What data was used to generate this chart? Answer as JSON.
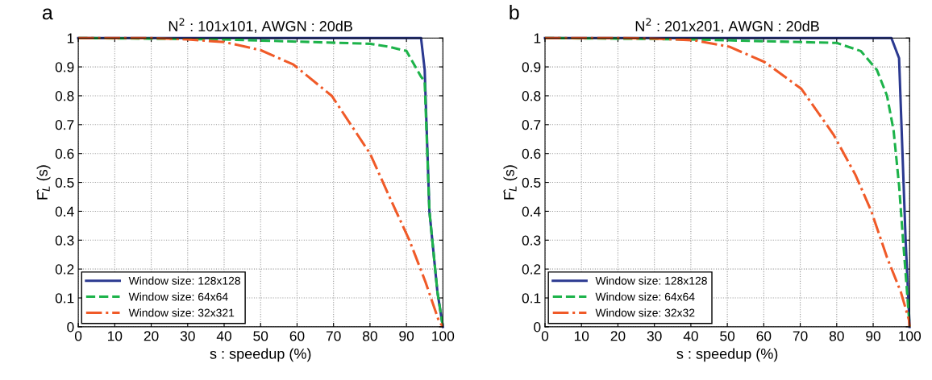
{
  "chart_data": [
    {
      "type": "line",
      "title": "N$^{2}$ : 101x101, AWGN : 20dB",
      "xlabel": "s : speedup (%)",
      "ylabel": "F̂$_{L}$ (s)",
      "annotations": [
        "a"
      ],
      "xlim": [
        0,
        100
      ],
      "ylim": [
        0,
        1
      ],
      "xticks": [
        0,
        10,
        20,
        30,
        40,
        50,
        60,
        70,
        80,
        90,
        100
      ],
      "yticks": [
        0,
        0.1,
        0.2,
        0.3,
        0.4,
        0.5,
        0.6,
        0.7,
        0.8,
        0.9,
        1
      ],
      "grid": true,
      "legend": "bottom left",
      "series": [
        {
          "name": "Window size: 128x128",
          "color": "#2b3990",
          "line_style": "solid",
          "x": [
            0,
            94,
            95,
            96.3,
            98.5,
            100
          ],
          "values": [
            1,
            1,
            0.89,
            0.4,
            0.12,
            0
          ]
        },
        {
          "name": "Window size: 64x64",
          "color": "#1db34a",
          "line_style": "dashed",
          "x": [
            0,
            40,
            80,
            85,
            90,
            94,
            95,
            96.3,
            98.5,
            100
          ],
          "values": [
            1,
            0.995,
            0.98,
            0.97,
            0.955,
            0.866,
            0.85,
            0.4,
            0.12,
            0
          ]
        },
        {
          "name": "Window size: 32x321",
          "color": "#f05a28",
          "line_style": "dashdot",
          "x": [
            0,
            20,
            30,
            40,
            50,
            59,
            69.5,
            80,
            85.7,
            90.8,
            95.2,
            98.9,
            100
          ],
          "values": [
            1,
            1,
            0.995,
            0.986,
            0.958,
            0.908,
            0.8,
            0.6,
            0.44,
            0.3,
            0.156,
            0.02,
            0
          ]
        }
      ]
    },
    {
      "type": "line",
      "title": "N$^{2}$ : 201x201, AWGN : 20dB",
      "xlabel": "s : speedup (%)",
      "ylabel": "F̂$_{L}$ (s)",
      "annotations": [
        "b"
      ],
      "xlim": [
        0,
        100
      ],
      "ylim": [
        0,
        1
      ],
      "xticks": [
        0,
        10,
        20,
        30,
        40,
        50,
        60,
        70,
        80,
        90,
        100
      ],
      "yticks": [
        0,
        0.1,
        0.2,
        0.3,
        0.4,
        0.5,
        0.6,
        0.7,
        0.8,
        0.9,
        1
      ],
      "grid": true,
      "legend": "bottom left",
      "series": [
        {
          "name": "Window size: 128x128",
          "color": "#2b3990",
          "line_style": "solid",
          "x": [
            0,
            95,
            97.1,
            98.9,
            100
          ],
          "values": [
            1,
            1,
            0.93,
            0.3,
            0
          ]
        },
        {
          "name": "Window size: 64x64",
          "color": "#1db34a",
          "line_style": "dashed",
          "x": [
            0,
            40,
            80,
            86.6,
            91,
            93.8,
            95.6,
            97.1,
            98.2,
            99.3,
            100
          ],
          "values": [
            1,
            0.995,
            0.983,
            0.955,
            0.89,
            0.8,
            0.68,
            0.49,
            0.3,
            0.12,
            0
          ]
        },
        {
          "name": "Window size: 32x32",
          "color": "#f05a28",
          "line_style": "dashdot",
          "x": [
            0,
            20,
            30,
            41,
            50.5,
            60.2,
            70.3,
            79.1,
            85.1,
            89.5,
            93.8,
            97.6,
            99.8,
            100
          ],
          "values": [
            1,
            1,
            0.998,
            0.992,
            0.97,
            0.917,
            0.824,
            0.666,
            0.527,
            0.4,
            0.24,
            0.12,
            0.025,
            0
          ]
        }
      ]
    }
  ]
}
